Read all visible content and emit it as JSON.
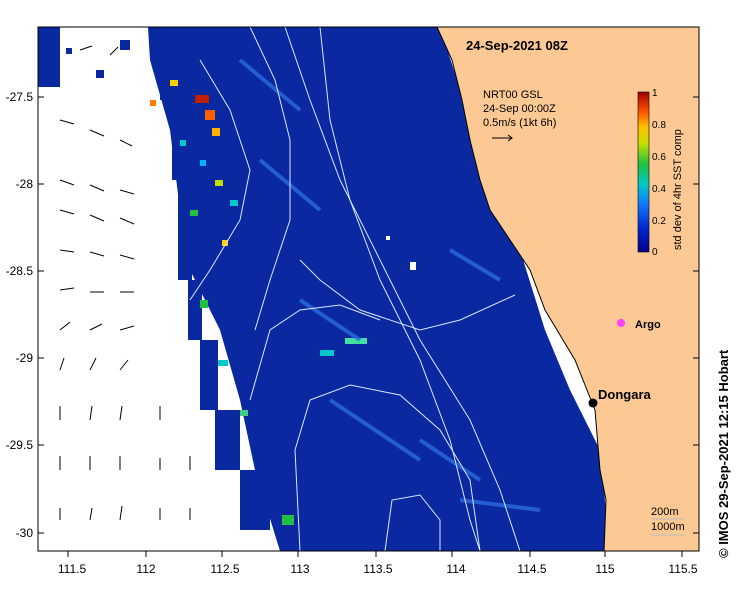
{
  "map": {
    "title": "24-Sep-2021 08Z",
    "credit": "© IMOS 29-Sep-2021 12:15 Hobart",
    "x_ticks": [
      "111.5",
      "112",
      "112.5",
      "113",
      "113.5",
      "114",
      "114.5",
      "115",
      "115.5"
    ],
    "y_ticks": [
      "-27.5",
      "-28",
      "-28.5",
      "-29",
      "-29.5",
      "-30"
    ],
    "current_legend": {
      "line1": "NRT00 GSL",
      "line2": "24-Sep 00:00Z",
      "line3": "0.5m/s (1kt 6h)"
    },
    "colorbar": {
      "label": "std dev of 4hr SST comp",
      "ticks": [
        "1",
        "0.8",
        "0.6",
        "0.4",
        "0.2",
        "0"
      ]
    },
    "places": {
      "dongara": "Dongara",
      "argo": "Argo"
    },
    "contour_legend": {
      "line1": "200m",
      "line2": "1000m"
    },
    "colors": {
      "land": "#fcc894",
      "ocean": "#0a28a0",
      "contour": "#d8e8ff"
    }
  }
}
